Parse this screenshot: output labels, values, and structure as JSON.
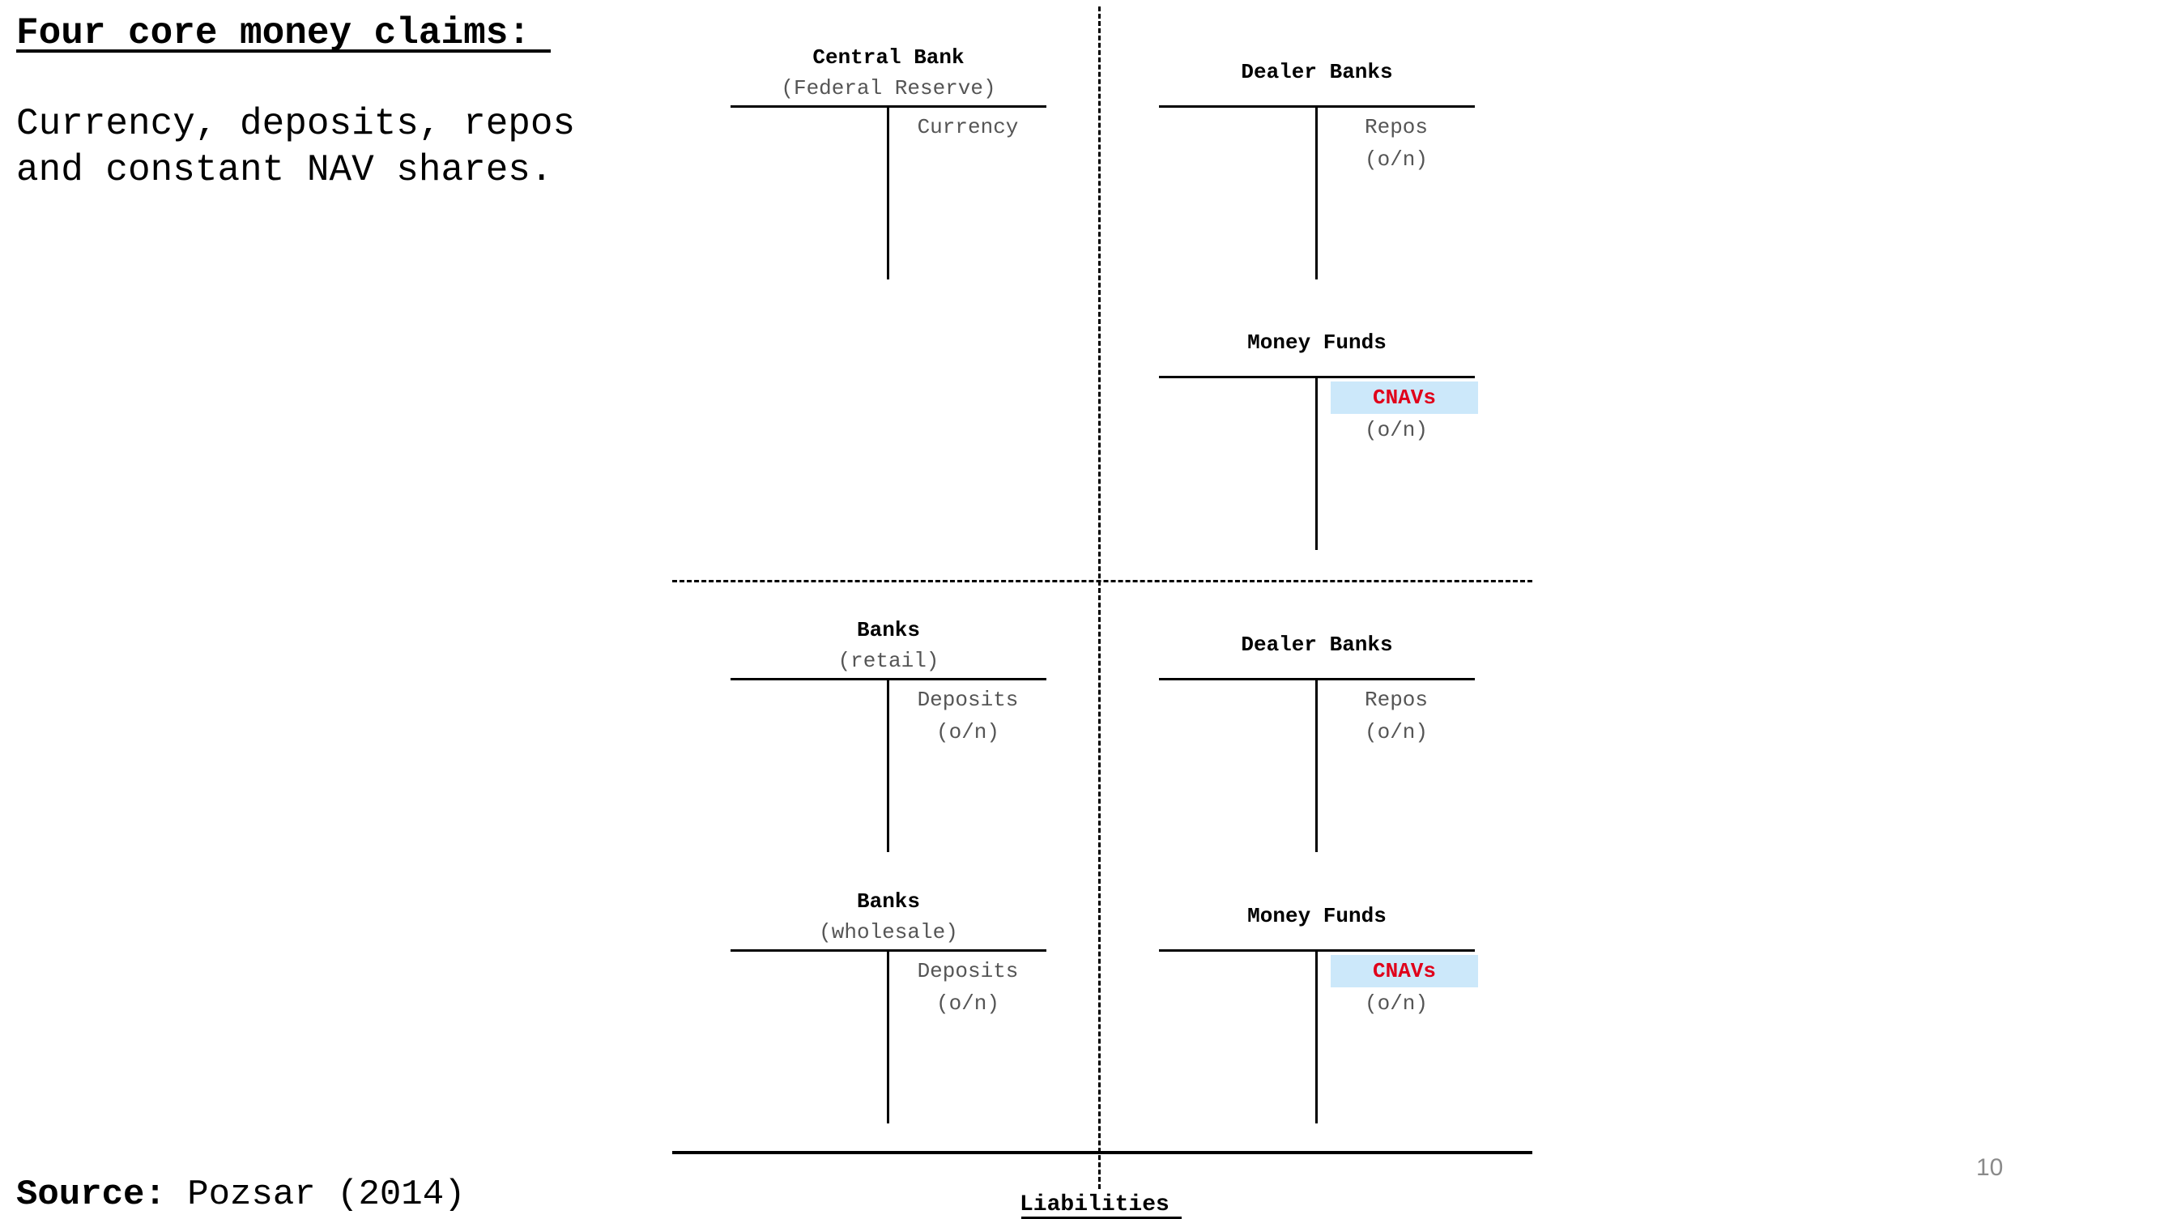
{
  "title": "Four core money claims:",
  "subtitle": [
    "Currency, deposits, repos",
    "and constant NAV shares."
  ],
  "accounts": {
    "central_bank": {
      "title": "Central Bank",
      "subtitle": "(Federal Reserve)",
      "liabilities": [
        "Currency"
      ]
    },
    "dealer_banks_top": {
      "title": "Dealer Banks",
      "liabilities": [
        "Repos",
        "(o/n)"
      ]
    },
    "money_funds_top": {
      "title": "Money Funds",
      "liabilities": [
        "CNAVs",
        "(o/n)"
      ]
    },
    "banks_retail": {
      "title": "Banks",
      "subtitle": "(retail)",
      "liabilities": [
        "Deposits",
        "(o/n)"
      ]
    },
    "dealer_banks_bottom": {
      "title": "Dealer Banks",
      "liabilities": [
        "Repos",
        "(o/n)"
      ]
    },
    "banks_wholesale": {
      "title": "Banks",
      "subtitle": "(wholesale)",
      "liabilities": [
        "Deposits",
        "(o/n)"
      ]
    },
    "money_funds_bottom": {
      "title": "Money Funds",
      "liabilities": [
        "CNAVs",
        "(o/n)"
      ]
    }
  },
  "highlight": {
    "fill": "#cce8fa",
    "text": "#e0001a"
  },
  "axis_label": "Liabilities",
  "source": {
    "label": "Source:",
    "value": " Pozsar (2014)"
  },
  "page_number": "10"
}
